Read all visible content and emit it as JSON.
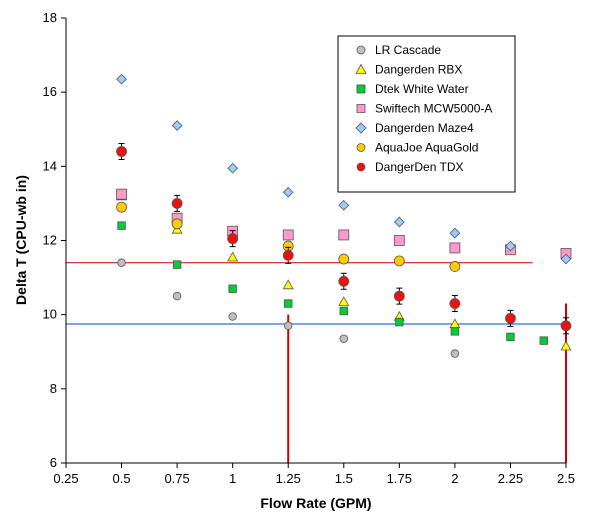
{
  "chart_data": {
    "type": "scatter",
    "xlabel": "Flow Rate (GPM)",
    "ylabel": "Delta T (CPU-wb in)",
    "xlim": [
      0.25,
      2.5
    ],
    "ylim": [
      6,
      18
    ],
    "x_ticks": [
      "0.25",
      "0.5",
      "0.75",
      "1",
      "1.25",
      "1.5",
      "1.75",
      "2",
      "2.25",
      "2.5"
    ],
    "y_ticks": [
      "6",
      "8",
      "10",
      "12",
      "14",
      "16",
      "18"
    ],
    "legend_position": "top-right",
    "series": [
      {
        "name": "LR Cascade",
        "marker": "circle",
        "color": "#c0c0c0",
        "x": [
          0.5,
          0.75,
          1,
          1.25,
          1.5,
          2
        ],
        "y": [
          11.4,
          10.5,
          9.95,
          9.7,
          9.35,
          8.95
        ]
      },
      {
        "name": "Dangerden RBX",
        "marker": "triangle",
        "color": "#ffff00",
        "x": [
          0.5,
          0.75,
          1,
          1.25,
          1.5,
          1.75,
          2,
          2.5
        ],
        "y": [
          13.2,
          12.3,
          11.55,
          10.8,
          10.35,
          9.95,
          9.75,
          9.15
        ]
      },
      {
        "name": "Dtek White Water",
        "marker": "square",
        "color": "#00cc33",
        "x": [
          0.5,
          0.75,
          1,
          1.25,
          1.5,
          1.75,
          2,
          2.25,
          2.4
        ],
        "y": [
          12.4,
          11.35,
          10.7,
          10.3,
          10.1,
          9.8,
          9.55,
          9.4,
          9.3
        ]
      },
      {
        "name": "Swiftech MCW5000-A",
        "marker": "square",
        "color": "#ff99cc",
        "x": [
          0.5,
          0.75,
          1,
          1.25,
          1.5,
          1.75,
          2,
          2.25,
          2.5
        ],
        "y": [
          13.25,
          12.6,
          12.25,
          12.15,
          12.15,
          12.0,
          11.8,
          11.75,
          11.65
        ]
      },
      {
        "name": "Dangerden Maze4",
        "marker": "diamond",
        "color": "#99ccff",
        "x": [
          0.5,
          0.75,
          1,
          1.25,
          1.5,
          1.75,
          2,
          2.25,
          2.5
        ],
        "y": [
          16.35,
          15.1,
          13.95,
          13.3,
          12.95,
          12.5,
          12.2,
          11.85,
          11.5
        ]
      },
      {
        "name": "AquaJoe AquaGold",
        "marker": "circle",
        "color": "#ffcc00",
        "x": [
          0.5,
          0.75,
          1,
          1.25,
          1.5,
          1.75,
          2
        ],
        "y": [
          12.9,
          12.45,
          12.05,
          11.85,
          11.5,
          11.45,
          11.3
        ]
      },
      {
        "name": "DangerDen TDX",
        "marker": "circle",
        "color": "#ee1111",
        "x": [
          0.5,
          0.75,
          1,
          1.25,
          1.5,
          1.75,
          2,
          2.25,
          2.5
        ],
        "y": [
          14.4,
          13.0,
          12.05,
          11.6,
          10.9,
          10.5,
          10.3,
          9.9,
          9.7
        ]
      }
    ],
    "annotations": {
      "hlines": [
        {
          "y": 11.4,
          "color": "#cc0000",
          "x_from": 0.25,
          "x_to": 2.35
        },
        {
          "y": 9.75,
          "color": "#0044cc",
          "x_from": 0.25,
          "x_to": 2.5
        }
      ],
      "vlines": [
        {
          "x": 1.25,
          "y_from": 6,
          "y_to": 10,
          "color": "#cc0000"
        },
        {
          "x": 2.5,
          "y_from": 6,
          "y_to": 10.3,
          "color": "#cc0000"
        }
      ]
    }
  }
}
